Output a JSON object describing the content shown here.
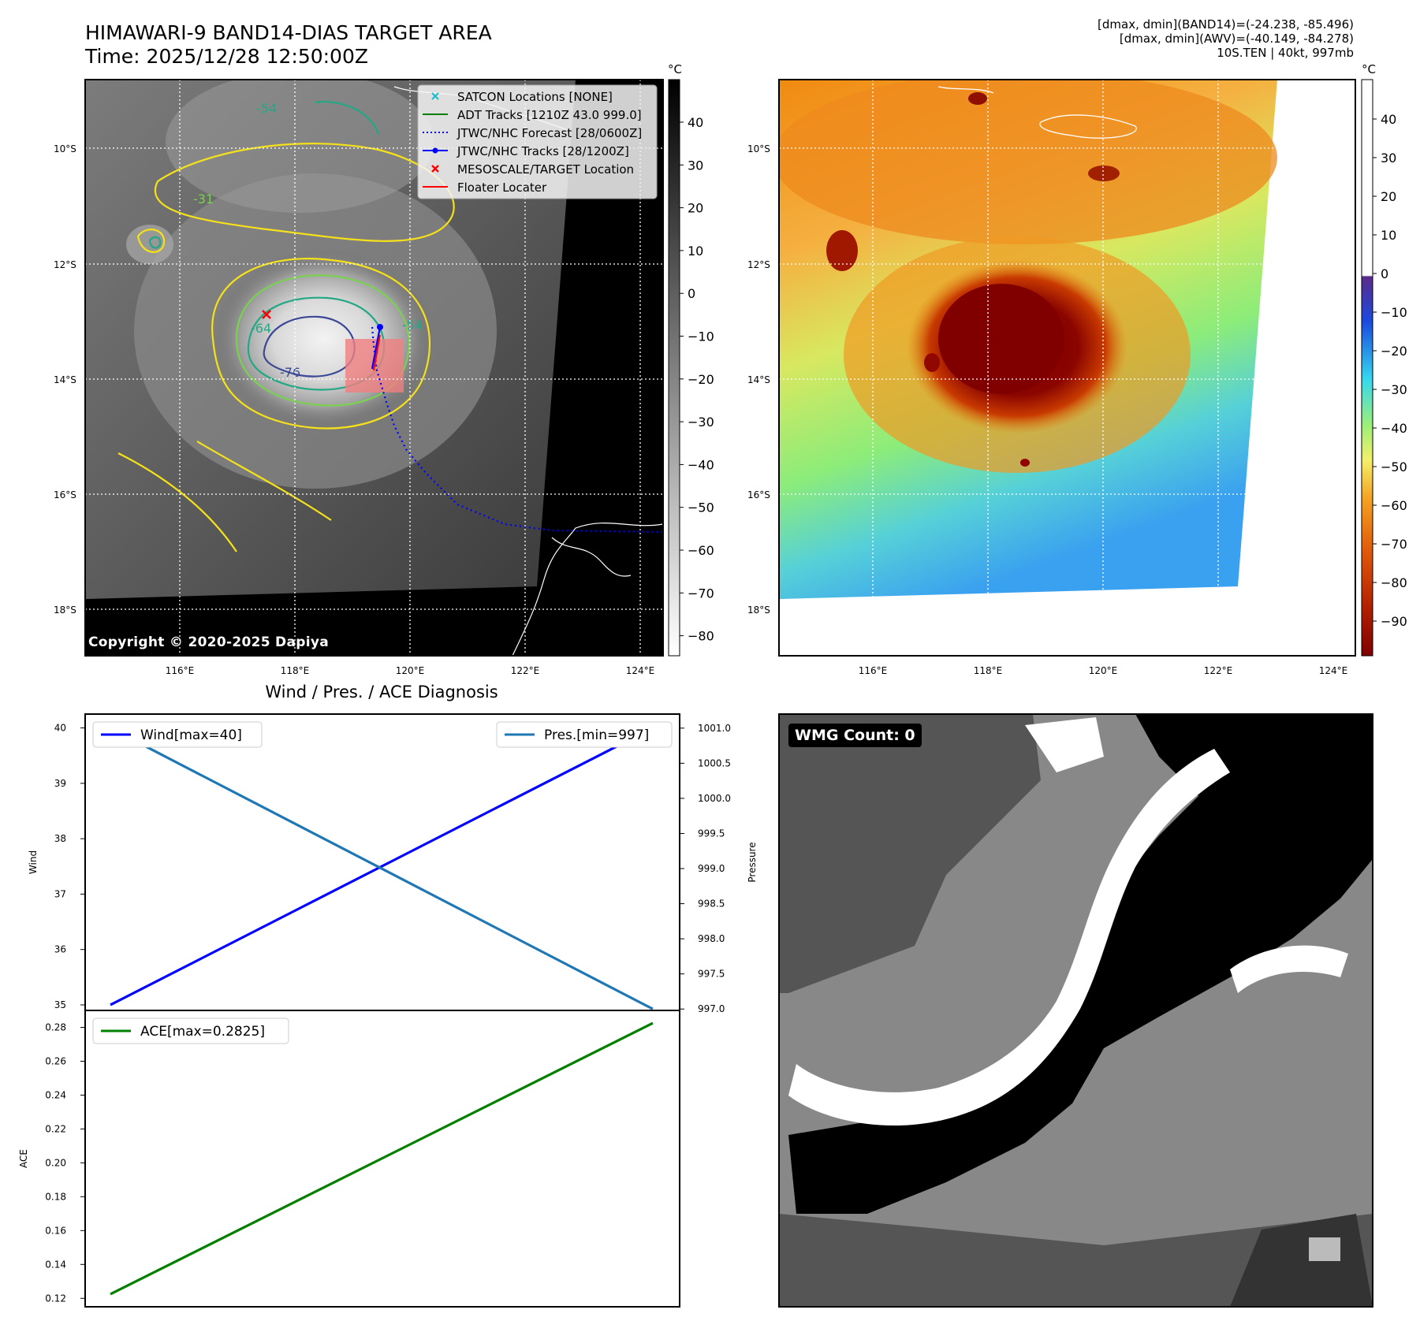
{
  "header": {
    "title": "HIMAWARI-9 BAND14-DIAS TARGET AREA",
    "time": "Time: 2025/12/28 12:50:00Z",
    "info": [
      "[dmax, dmin](BAND14)=(-24.238, -85.496)",
      "[dmax, dmin](AWV)=(-40.149, -84.278)",
      "10S.TEN | 40kt, 997mb"
    ]
  },
  "map_panel": {
    "lat_labels": [
      "10°S",
      "12°S",
      "14°S",
      "16°S",
      "18°S"
    ],
    "lon_labels": [
      "116°E",
      "118°E",
      "120°E",
      "122°E",
      "124°E"
    ],
    "legend": [
      {
        "label": "SATCON Locations [NONE]",
        "marker": "x",
        "color": "#17becf"
      },
      {
        "label": "ADT Tracks [1210Z 43.0 999.0]",
        "marker": "line",
        "color": "#008000"
      },
      {
        "label": "JTWC/NHC Forecast [28/0600Z]",
        "marker": "dotted",
        "color": "#0000ff"
      },
      {
        "label": "JTWC/NHC Tracks [28/1200Z]",
        "marker": "line-dot",
        "color": "#0000ff"
      },
      {
        "label": "MESOSCALE/TARGET Location",
        "marker": "x",
        "color": "#ff0000"
      },
      {
        "label": "Floater Locater",
        "marker": "line",
        "color": "#ff0000"
      }
    ],
    "contour_labels": [
      "-54",
      "-64",
      "-76",
      "-54",
      "-31"
    ],
    "copyright": "Copyright © 2020-2025 Dapiya",
    "colorbar": {
      "unit": "°C",
      "ticks": [
        "40",
        "30",
        "20",
        "10",
        "0",
        "−10",
        "−20",
        "−30",
        "−40",
        "−50",
        "−60",
        "−70",
        "−80"
      ]
    }
  },
  "awv_panel": {
    "lat_labels": [
      "10°S",
      "12°S",
      "14°S",
      "16°S",
      "18°S"
    ],
    "lon_labels": [
      "116°E",
      "118°E",
      "120°E",
      "122°E",
      "124°E"
    ],
    "colorbar": {
      "unit": "°C",
      "ticks": [
        "40",
        "30",
        "20",
        "10",
        "0",
        "−10",
        "−20",
        "−30",
        "−40",
        "−50",
        "−60",
        "−70",
        "−80",
        "−90"
      ]
    }
  },
  "diagnosis_panel": {
    "title": "Wind / Pres. / ACE Diagnosis",
    "wind_ylabel": "Wind",
    "pres_ylabel": "Pressure",
    "ace_ylabel": "ACE",
    "wind_ticks": [
      "40",
      "39",
      "38",
      "37",
      "36",
      "35"
    ],
    "pres_ticks": [
      "1001.0",
      "1000.5",
      "1000.0",
      "999.5",
      "999.0",
      "998.5",
      "998.0",
      "997.5",
      "997.0"
    ],
    "ace_ticks": [
      "0.28",
      "0.26",
      "0.24",
      "0.22",
      "0.20",
      "0.18",
      "0.16",
      "0.14",
      "0.12"
    ]
  },
  "chart_data": [
    {
      "type": "line",
      "title": "Wind / Pres. / ACE Diagnosis",
      "x": [
        0,
        1
      ],
      "series": [
        {
          "name": "Wind[max=40]",
          "values": [
            35,
            40
          ],
          "axis": "left",
          "color": "#0000ff"
        },
        {
          "name": "Pres.[min=997]",
          "values": [
            1001,
            997
          ],
          "axis": "right",
          "color": "#1f77b4"
        }
      ],
      "ylabel": "Wind",
      "y2label": "Pressure",
      "ylim": [
        34.9,
        40.25
      ],
      "y2lim": [
        996.98,
        1001.2
      ],
      "legend": [
        "top-left",
        "top-right"
      ]
    },
    {
      "type": "line",
      "x": [
        0,
        1
      ],
      "series": [
        {
          "name": "ACE[max=0.2825]",
          "values": [
            0.1225,
            0.2825
          ],
          "color": "#008000"
        }
      ],
      "ylabel": "ACE",
      "ylim": [
        0.115,
        0.29
      ],
      "legend": "top-left"
    }
  ],
  "wmg_panel": {
    "label": "WMG Count: 0"
  },
  "colors": {
    "wind": "#0000ff",
    "pressure": "#1f77b4",
    "ace": "#008000",
    "contour_yellow": "#f5e11a",
    "contour_green": "#7ad151",
    "contour_teal": "#22a884",
    "contour_navy": "#3b4894"
  }
}
